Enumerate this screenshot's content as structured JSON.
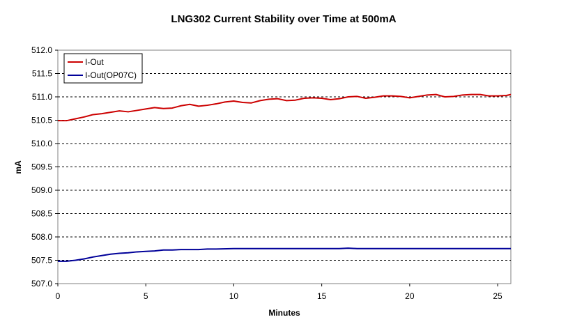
{
  "chart_data": {
    "type": "line",
    "title": "LNG302 Current Stability over Time at 500mA",
    "xlabel": "Minutes",
    "ylabel": "mA",
    "xlim": [
      0,
      25.75
    ],
    "ylim": [
      507.0,
      512.0
    ],
    "x_ticks": [
      0,
      5,
      10,
      15,
      20,
      25
    ],
    "y_ticks": [
      507.0,
      507.5,
      508.0,
      508.5,
      509.0,
      509.5,
      510.0,
      510.5,
      511.0,
      511.5,
      512.0
    ],
    "x_tick_labels": [
      "0",
      "5",
      "10",
      "15",
      "20",
      "25"
    ],
    "y_tick_labels": [
      "507.0",
      "507.5",
      "508.0",
      "508.5",
      "509.0",
      "509.5",
      "510.0",
      "510.5",
      "511.0",
      "511.5",
      "512.0"
    ],
    "grid": "horizontal dashed",
    "legend_position": "top-left",
    "series": [
      {
        "name": "I-Out",
        "color": "#cc0000",
        "x": [
          0,
          0.5,
          1,
          1.5,
          2,
          2.5,
          3,
          3.5,
          4,
          4.5,
          5,
          5.5,
          6,
          6.5,
          7,
          7.5,
          8,
          8.5,
          9,
          9.5,
          10,
          10.5,
          11,
          11.5,
          12,
          12.5,
          13,
          13.5,
          14,
          14.5,
          15,
          15.5,
          16,
          16.5,
          17,
          17.5,
          18,
          18.5,
          19,
          19.5,
          20,
          20.5,
          21,
          21.5,
          22,
          22.5,
          23,
          23.5,
          24,
          24.5,
          25,
          25.5,
          25.75
        ],
        "y": [
          510.49,
          510.49,
          510.53,
          510.57,
          510.62,
          510.64,
          510.67,
          510.7,
          510.68,
          510.71,
          510.74,
          510.77,
          510.75,
          510.76,
          510.81,
          510.84,
          510.8,
          510.82,
          510.85,
          510.89,
          510.91,
          510.88,
          510.87,
          510.92,
          510.95,
          510.96,
          510.92,
          510.93,
          510.97,
          510.98,
          510.97,
          510.94,
          510.96,
          511.0,
          511.01,
          510.97,
          510.99,
          511.02,
          511.02,
          511.01,
          510.98,
          511.01,
          511.04,
          511.05,
          511.0,
          511.01,
          511.04,
          511.05,
          511.05,
          511.02,
          511.02,
          511.03,
          511.05
        ]
      },
      {
        "name": "I-Out(OP07C)",
        "color": "#000099",
        "x": [
          0,
          0.5,
          1,
          1.5,
          2,
          2.5,
          3,
          3.5,
          4,
          4.5,
          5,
          5.5,
          6,
          6.5,
          7,
          7.5,
          8,
          8.5,
          9,
          10,
          11,
          12,
          13,
          14,
          15,
          16,
          16.5,
          17,
          18,
          19,
          20,
          21,
          22,
          23,
          24,
          25,
          25.75
        ],
        "y": [
          507.48,
          507.48,
          507.5,
          507.53,
          507.57,
          507.6,
          507.63,
          507.65,
          507.66,
          507.68,
          507.69,
          507.7,
          507.72,
          507.72,
          507.73,
          507.73,
          507.73,
          507.74,
          507.74,
          507.75,
          507.75,
          507.75,
          507.75,
          507.75,
          507.75,
          507.75,
          507.76,
          507.75,
          507.75,
          507.75,
          507.75,
          507.75,
          507.75,
          507.75,
          507.75,
          507.75,
          507.75
        ]
      }
    ]
  }
}
